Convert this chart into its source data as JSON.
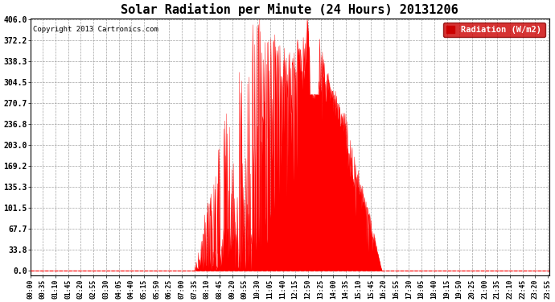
{
  "title": "Solar Radiation per Minute (24 Hours) 20131206",
  "copyright_text": "Copyright 2013 Cartronics.com",
  "legend_label": "Radiation (W/m2)",
  "ylabel_values": [
    0.0,
    33.8,
    67.7,
    101.5,
    135.3,
    169.2,
    203.0,
    236.8,
    270.7,
    304.5,
    338.3,
    372.2,
    406.0
  ],
  "ymax": 406.0,
  "ymin": 0.0,
  "background_color": "#ffffff",
  "plot_bg_color": "#ffffff",
  "fill_color": "#ff0000",
  "grid_color": "#999999",
  "title_fontsize": 11,
  "legend_bg_color": "#cc0000",
  "legend_text_color": "#ffffff",
  "x_tick_interval": 35,
  "total_minutes": 1440,
  "sunrise_minute": 455,
  "sunset_minute": 975,
  "peak_minute": 770,
  "peak_value": 406.0
}
